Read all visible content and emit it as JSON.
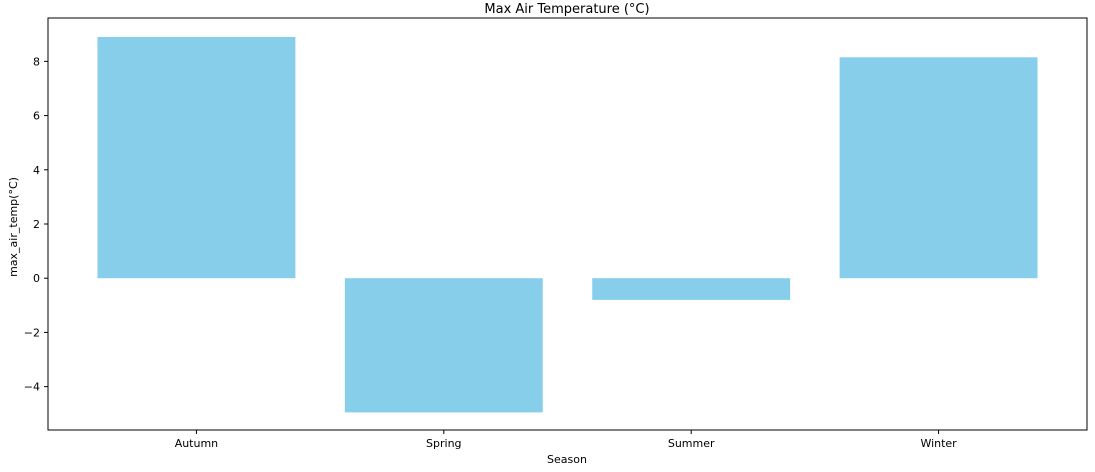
{
  "chart_data": {
    "type": "bar",
    "title": "Max Air Temperature (°C)",
    "xlabel": "Season",
    "ylabel": "max_air_temp(°C)",
    "categories": [
      "Autumn",
      "Spring",
      "Summer",
      "Winter"
    ],
    "values": [
      8.9,
      -4.95,
      -0.8,
      8.15
    ],
    "ylim": [
      -5.6,
      9.6
    ],
    "yticks": [
      -4,
      -2,
      0,
      2,
      4,
      6,
      8
    ],
    "ytick_labels": [
      "−4",
      "−2",
      "0",
      "2",
      "4",
      "6",
      "8"
    ],
    "bar_color": "#87ceeb",
    "grid": false,
    "legend": false
  }
}
